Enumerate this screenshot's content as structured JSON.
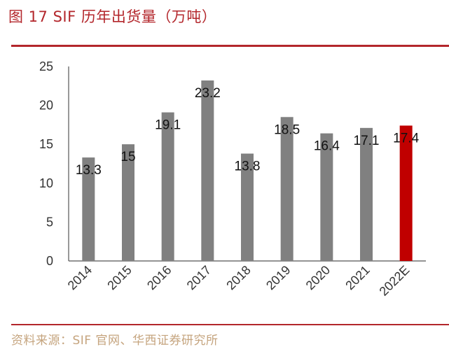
{
  "header": {
    "title": "图 17 SIF 历年出货量（万吨）"
  },
  "footer": {
    "source": "资料来源：SIF 官网、华西证券研究所"
  },
  "colors": {
    "bar": "#808080",
    "highlight": "#c00000",
    "accent": "#b3262b"
  },
  "chart_data": {
    "type": "bar",
    "title": "",
    "xlabel": "",
    "ylabel": "",
    "categories": [
      "2014",
      "2015",
      "2016",
      "2017",
      "2018",
      "2019",
      "2020",
      "2021",
      "2022E"
    ],
    "values": [
      13.3,
      15,
      19.1,
      23.2,
      13.8,
      18.5,
      16.4,
      17.1,
      17.4
    ],
    "value_labels": [
      "13.3",
      "15",
      "19.1",
      "23.2",
      "13.8",
      "18.5",
      "16.4",
      "17.1",
      "17.4"
    ],
    "highlight_index": 8,
    "ylim": [
      0,
      25
    ],
    "yticks": [
      0,
      5,
      10,
      15,
      20,
      25
    ],
    "grid": false,
    "legend": "none"
  }
}
